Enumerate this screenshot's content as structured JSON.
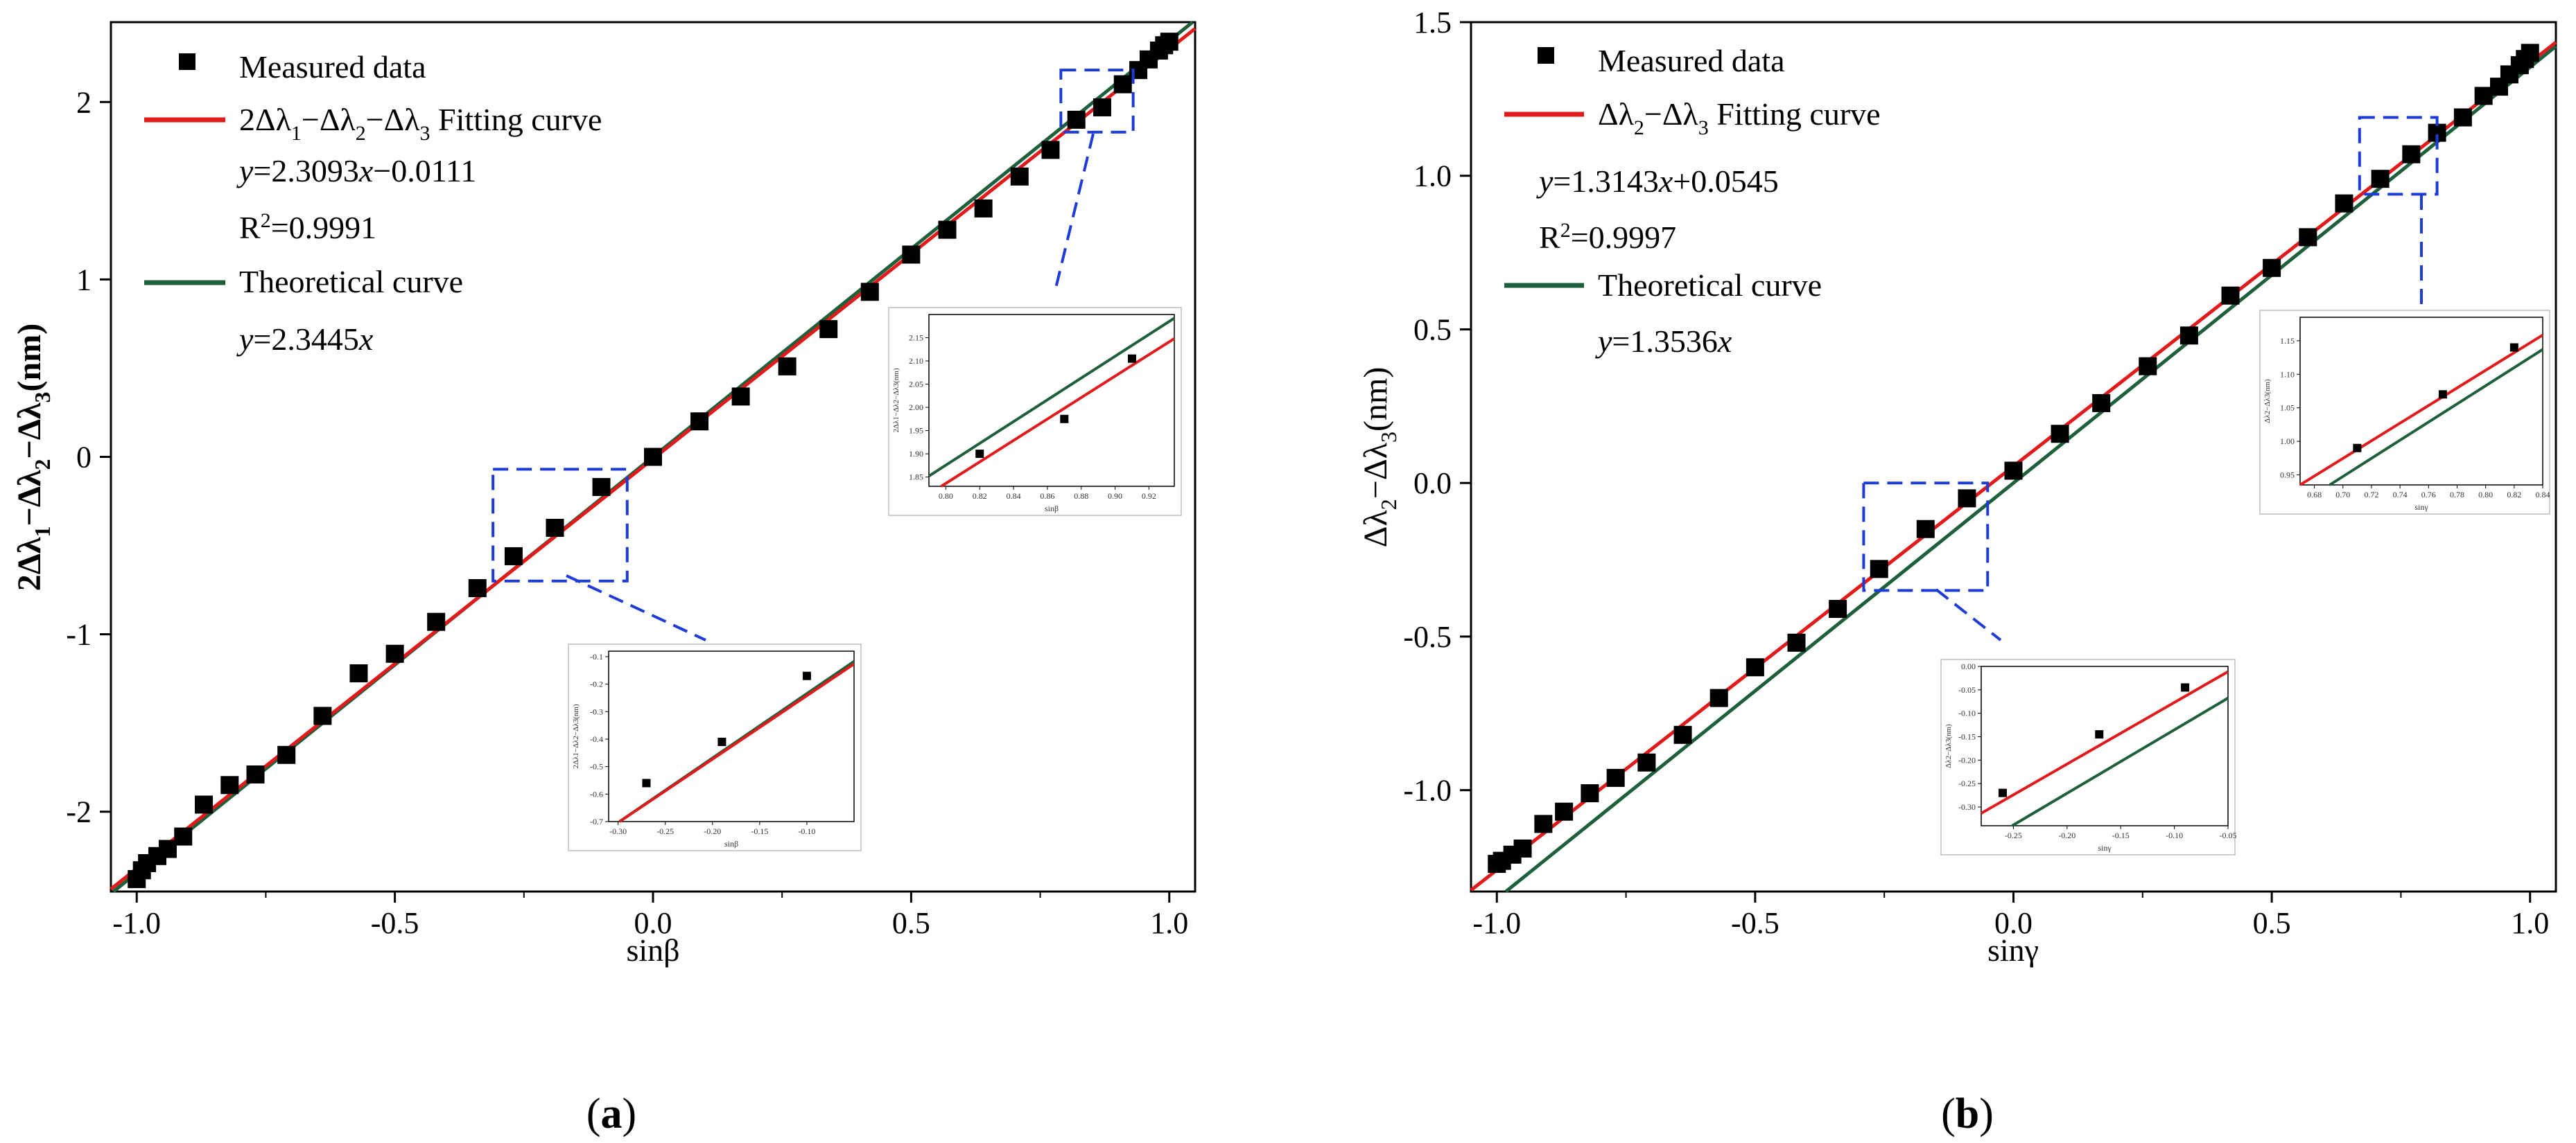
{
  "colors": {
    "fit": "#e11b1b",
    "theory": "#1e5f3c",
    "marker": "#000000",
    "zoom_box": "#1d3bd6",
    "axis": "#000000"
  },
  "chart_data": [
    {
      "type": "scatter",
      "panel_label": "(a)",
      "panel_letter": "a",
      "xlabel": "sinβ",
      "ylabel": "2Δλ1−Δλ2−Δλ3(nm)",
      "xlim": [
        -1.05,
        1.05
      ],
      "ylim": [
        -2.45,
        2.45
      ],
      "xticks": [
        -1.0,
        -0.5,
        0.0,
        0.5,
        1.0
      ],
      "xtick_labels": [
        "-1.0",
        "-0.5",
        "0.0",
        "0.5",
        "1.0"
      ],
      "yticks": [
        -2,
        -1,
        0,
        1,
        2
      ],
      "ytick_labels": [
        "-2",
        "-1",
        "0",
        "1",
        "2"
      ],
      "legend": {
        "measured": "Measured data",
        "fit_label": "2Δλ1−Δλ2−Δλ3 Fitting curve",
        "fit_equation": "y=2.3093x−0.0111",
        "fit_r2": "R2=0.9991",
        "theory_label": "Theoretical curve",
        "theory_equation": "y=2.3445x"
      },
      "series": [
        {
          "name": "Measured data",
          "kind": "markers",
          "x": [
            -1.0,
            -0.99,
            -0.98,
            -0.96,
            -0.94,
            -0.91,
            -0.87,
            -0.82,
            -0.77,
            -0.71,
            -0.64,
            -0.57,
            -0.5,
            -0.42,
            -0.34,
            -0.27,
            -0.19,
            -0.1,
            0.0,
            0.09,
            0.17,
            0.26,
            0.34,
            0.42,
            0.5,
            0.57,
            0.64,
            0.71,
            0.77,
            0.82,
            0.87,
            0.91,
            0.94,
            0.96,
            0.98,
            0.99,
            1.0
          ],
          "y": [
            -2.38,
            -2.33,
            -2.29,
            -2.25,
            -2.21,
            -2.14,
            -1.96,
            -1.85,
            -1.79,
            -1.68,
            -1.46,
            -1.22,
            -1.11,
            -0.93,
            -0.74,
            -0.56,
            -0.4,
            -0.17,
            0.0,
            0.2,
            0.34,
            0.51,
            0.72,
            0.93,
            1.14,
            1.28,
            1.4,
            1.58,
            1.73,
            1.9,
            1.97,
            2.1,
            2.18,
            2.24,
            2.29,
            2.32,
            2.34
          ]
        },
        {
          "name": "Fitting curve",
          "kind": "line",
          "slope": 2.3093,
          "intercept": -0.0111
        },
        {
          "name": "Theoretical curve",
          "kind": "line",
          "slope": 2.3445,
          "intercept": 0
        }
      ],
      "zoom_boxes": [
        {
          "xlim": [
            -0.31,
            -0.05
          ],
          "ylim": [
            -0.7,
            -0.07
          ]
        },
        {
          "xlim": [
            0.79,
            0.93
          ],
          "ylim": [
            1.83,
            2.18
          ]
        }
      ],
      "insets": [
        {
          "xlabel": "sinβ",
          "ylabel": "2Δλ1−Δλ2−Δλ3(nm)",
          "xlim": [
            -0.31,
            -0.05
          ],
          "ylim": [
            -0.7,
            -0.08
          ],
          "xticks": [
            -0.3,
            -0.25,
            -0.2,
            -0.15,
            -0.1
          ],
          "xtick_labels": [
            "-0.30",
            "-0.25",
            "-0.20",
            "-0.15",
            "-0.10"
          ],
          "yticks": [
            -0.7,
            -0.6,
            -0.5,
            -0.4,
            -0.3,
            -0.2,
            -0.1
          ],
          "ytick_labels": [
            "-0.7",
            "-0.6",
            "-0.5",
            "-0.4",
            "-0.3",
            "-0.2",
            "-0.1"
          ],
          "points_x": [
            -0.27,
            -0.19,
            -0.1
          ],
          "points_y": [
            -0.56,
            -0.41,
            -0.17
          ]
        },
        {
          "xlabel": "sinβ",
          "ylabel": "2Δλ1−Δλ2−Δλ3(nm)",
          "xlim": [
            0.79,
            0.935
          ],
          "ylim": [
            1.83,
            2.2
          ],
          "xticks": [
            0.8,
            0.82,
            0.84,
            0.86,
            0.88,
            0.9,
            0.92
          ],
          "xtick_labels": [
            "0.80",
            "0.82",
            "0.84",
            "0.86",
            "0.88",
            "0.90",
            "0.92"
          ],
          "yticks": [
            1.85,
            1.9,
            1.95,
            2.0,
            2.05,
            2.1,
            2.15
          ],
          "ytick_labels": [
            "1.85",
            "1.90",
            "1.95",
            "2.00",
            "2.05",
            "2.10",
            "2.15"
          ],
          "points_x": [
            0.82,
            0.87,
            0.91
          ],
          "points_y": [
            1.9,
            1.975,
            2.105
          ]
        }
      ]
    },
    {
      "type": "scatter",
      "panel_label": "(b)",
      "panel_letter": "b",
      "xlabel": "sinγ",
      "ylabel": "Δλ2−Δλ3(nm)",
      "xlim": [
        -1.05,
        1.05
      ],
      "ylim": [
        -1.33,
        1.5
      ],
      "xticks": [
        -1.0,
        -0.5,
        0.0,
        0.5,
        1.0
      ],
      "xtick_labels": [
        "-1.0",
        "-0.5",
        "0.0",
        "0.5",
        "1.0"
      ],
      "yticks": [
        -1.0,
        -0.5,
        0.0,
        0.5,
        1.0,
        1.5
      ],
      "ytick_labels": [
        "-1.0",
        "-0.5",
        "0.0",
        "0.5",
        "1.0",
        "1.5"
      ],
      "legend": {
        "measured": "Measured data",
        "fit_label": "Δλ2−Δλ3 Fitting curve",
        "fit_equation": "y=1.3143x+0.0545",
        "fit_r2": "R2=0.9997",
        "theory_label": "Theoretical curve",
        "theory_equation": "y=1.3536x"
      },
      "series": [
        {
          "name": "Measured data",
          "kind": "markers",
          "x": [
            -1.0,
            -0.99,
            -0.97,
            -0.95,
            -0.91,
            -0.87,
            -0.82,
            -0.77,
            -0.71,
            -0.64,
            -0.57,
            -0.5,
            -0.42,
            -0.34,
            -0.26,
            -0.17,
            -0.09,
            0.0,
            0.09,
            0.17,
            0.26,
            0.34,
            0.42,
            0.5,
            0.57,
            0.64,
            0.71,
            0.77,
            0.82,
            0.87,
            0.91,
            0.94,
            0.96,
            0.98,
            0.99,
            1.0
          ],
          "y": [
            -1.24,
            -1.23,
            -1.21,
            -1.19,
            -1.11,
            -1.07,
            -1.01,
            -0.96,
            -0.91,
            -0.82,
            -0.7,
            -0.6,
            -0.52,
            -0.41,
            -0.28,
            -0.15,
            -0.05,
            0.04,
            0.16,
            0.26,
            0.38,
            0.48,
            0.61,
            0.7,
            0.8,
            0.91,
            0.99,
            1.07,
            1.14,
            1.19,
            1.26,
            1.29,
            1.33,
            1.36,
            1.38,
            1.4
          ]
        },
        {
          "name": "Fitting curve",
          "kind": "line",
          "slope": 1.3143,
          "intercept": 0.0545
        },
        {
          "name": "Theoretical curve",
          "kind": "line",
          "slope": 1.3536,
          "intercept": 0
        }
      ],
      "zoom_boxes": [
        {
          "xlim": [
            -0.29,
            -0.05
          ],
          "ylim": [
            -0.35,
            0.0
          ]
        },
        {
          "xlim": [
            0.67,
            0.82
          ],
          "ylim": [
            0.94,
            1.19
          ]
        }
      ],
      "insets": [
        {
          "xlabel": "sinγ",
          "ylabel": "Δλ2−Δλ3(nm)",
          "xlim": [
            -0.28,
            -0.05
          ],
          "ylim": [
            -0.34,
            0.0
          ],
          "xticks": [
            -0.25,
            -0.2,
            -0.15,
            -0.1,
            -0.05
          ],
          "xtick_labels": [
            "-0.25",
            "-0.20",
            "-0.15",
            "-0.10",
            "-0.05"
          ],
          "yticks": [
            -0.3,
            -0.25,
            -0.2,
            -0.15,
            -0.1,
            -0.05,
            0.0
          ],
          "ytick_labels": [
            "-0.30",
            "-0.25",
            "-0.20",
            "-0.15",
            "-0.10",
            "-0.05",
            "0.00"
          ],
          "points_x": [
            -0.26,
            -0.17,
            -0.09
          ],
          "points_y": [
            -0.27,
            -0.145,
            -0.045
          ]
        },
        {
          "xlabel": "sinγ",
          "ylabel": "Δλ2−Δλ3(nm)",
          "xlim": [
            0.67,
            0.84
          ],
          "ylim": [
            0.935,
            1.185
          ],
          "xticks": [
            0.68,
            0.7,
            0.72,
            0.74,
            0.76,
            0.78,
            0.8,
            0.82,
            0.84
          ],
          "xtick_labels": [
            "0.68",
            "0.70",
            "0.72",
            "0.74",
            "0.76",
            "0.78",
            "0.80",
            "0.82",
            "0.84"
          ],
          "yticks": [
            0.95,
            1.0,
            1.05,
            1.1,
            1.15
          ],
          "ytick_labels": [
            "0.95",
            "1.00",
            "1.05",
            "1.10",
            "1.15"
          ],
          "points_x": [
            0.71,
            0.77,
            0.82
          ],
          "points_y": [
            0.99,
            1.07,
            1.14
          ]
        }
      ]
    }
  ]
}
